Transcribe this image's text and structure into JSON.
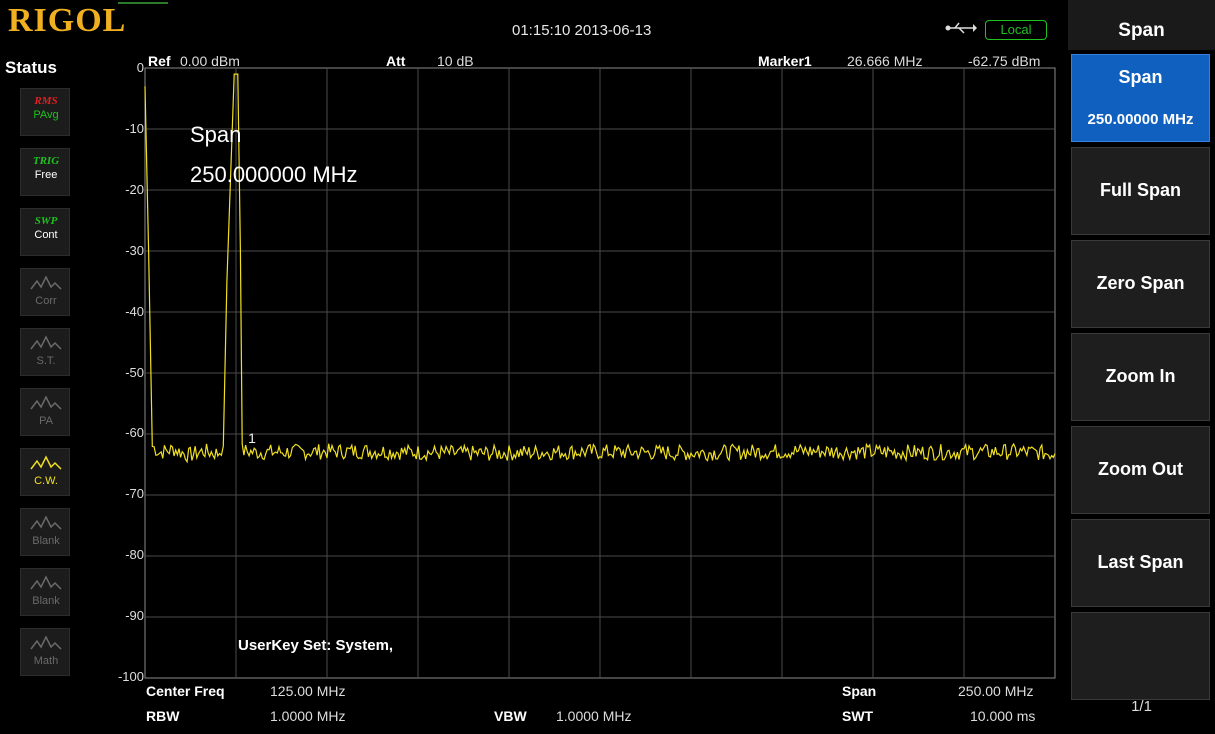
{
  "header": {
    "logo": "RIGOL",
    "datetime": "01:15:10 2013-06-13",
    "remote_status": "Local"
  },
  "status_panel": {
    "title": "Status",
    "tiles": [
      {
        "top": "RMS",
        "label": "PAvg",
        "icon": "trace-avg-icon",
        "color": "#20c020",
        "top_color": "#e02020"
      },
      {
        "top": "TRIG",
        "label": "Free",
        "icon": "trigger-icon",
        "color": "#ffffff",
        "top_color": "#20c020"
      },
      {
        "top": "SWP",
        "label": "Cont",
        "icon": "sweep-icon",
        "color": "#ffffff",
        "top_color": "#20c020"
      },
      {
        "top": "",
        "label": "Corr",
        "icon": "correction-icon",
        "color": "#6a6a6a"
      },
      {
        "top": "",
        "label": "S.T.",
        "icon": "signal-track-icon",
        "color": "#6a6a6a"
      },
      {
        "top": "",
        "label": "PA",
        "icon": "preamp-icon",
        "color": "#6a6a6a"
      },
      {
        "top": "",
        "label": "C.W.",
        "icon": "clear-write-icon",
        "color": "#f0e020"
      },
      {
        "top": "",
        "label": "Blank",
        "icon": "blank-trace-icon",
        "color": "#6a6a6a"
      },
      {
        "top": "",
        "label": "Blank",
        "icon": "blank-trace-icon",
        "color": "#6a6a6a"
      },
      {
        "top": "",
        "label": "Math",
        "icon": "math-trace-icon",
        "color": "#6a6a6a"
      }
    ]
  },
  "measurement": {
    "ref_label": "Ref",
    "ref_value": "0.00 dBm",
    "att_label": "Att",
    "att_value": "10 dB",
    "marker_label": "Marker1",
    "marker_freq": "26.666 MHz",
    "marker_level": "-62.75 dBm",
    "marker_tag": "1",
    "y_ticks": [
      "0",
      "-10",
      "-20",
      "-30",
      "-40",
      "-50",
      "-60",
      "-70",
      "-80",
      "-90",
      "-100"
    ],
    "overlay_label": "Span",
    "overlay_value": "250.000000 MHz",
    "userkey_text": "UserKey Set:   System,",
    "center_freq_label": "Center Freq",
    "center_freq_value": "125.00 MHz",
    "rbw_label": "RBW",
    "rbw_value": "1.0000 MHz",
    "vbw_label": "VBW",
    "vbw_value": "1.0000 MHz",
    "span_label": "Span",
    "span_value": "250.00 MHz",
    "swt_label": "SWT",
    "swt_value": "10.000 ms"
  },
  "chart_data": {
    "type": "line",
    "xlim": [
      0,
      250
    ],
    "ylim": [
      -100,
      0
    ],
    "grid": true,
    "series": [
      {
        "color": "#f0e020",
        "points": [
          [
            0,
            -3
          ],
          [
            1,
            -30
          ],
          [
            2,
            -62
          ],
          [
            4,
            -63
          ],
          [
            8,
            -62.5
          ],
          [
            12,
            -63.5
          ],
          [
            16,
            -62.8
          ],
          [
            20,
            -63.2
          ],
          [
            21.5,
            -62
          ],
          [
            22.5,
            -35
          ],
          [
            24.5,
            -1
          ],
          [
            25.5,
            -1
          ],
          [
            26.2,
            -30
          ],
          [
            26.7,
            -62.75
          ],
          [
            30,
            -63
          ],
          [
            60,
            -62.8
          ],
          [
            90,
            -63.2
          ],
          [
            120,
            -62.9
          ],
          [
            150,
            -63.1
          ],
          [
            180,
            -62.8
          ],
          [
            210,
            -63
          ],
          [
            240,
            -62.9
          ],
          [
            250,
            -63.2
          ]
        ]
      }
    ],
    "marker": {
      "x": 26.666,
      "y": -62.75
    }
  },
  "softkeys": {
    "menu_title": "Span",
    "items": [
      {
        "label": "Span",
        "value": "250.00000 MHz",
        "active": true
      },
      {
        "label": "Full Span"
      },
      {
        "label": "Zero Span"
      },
      {
        "label": "Zoom In"
      },
      {
        "label": "Zoom Out"
      },
      {
        "label": "Last Span"
      },
      {
        "label": ""
      }
    ],
    "page": "1/1"
  }
}
